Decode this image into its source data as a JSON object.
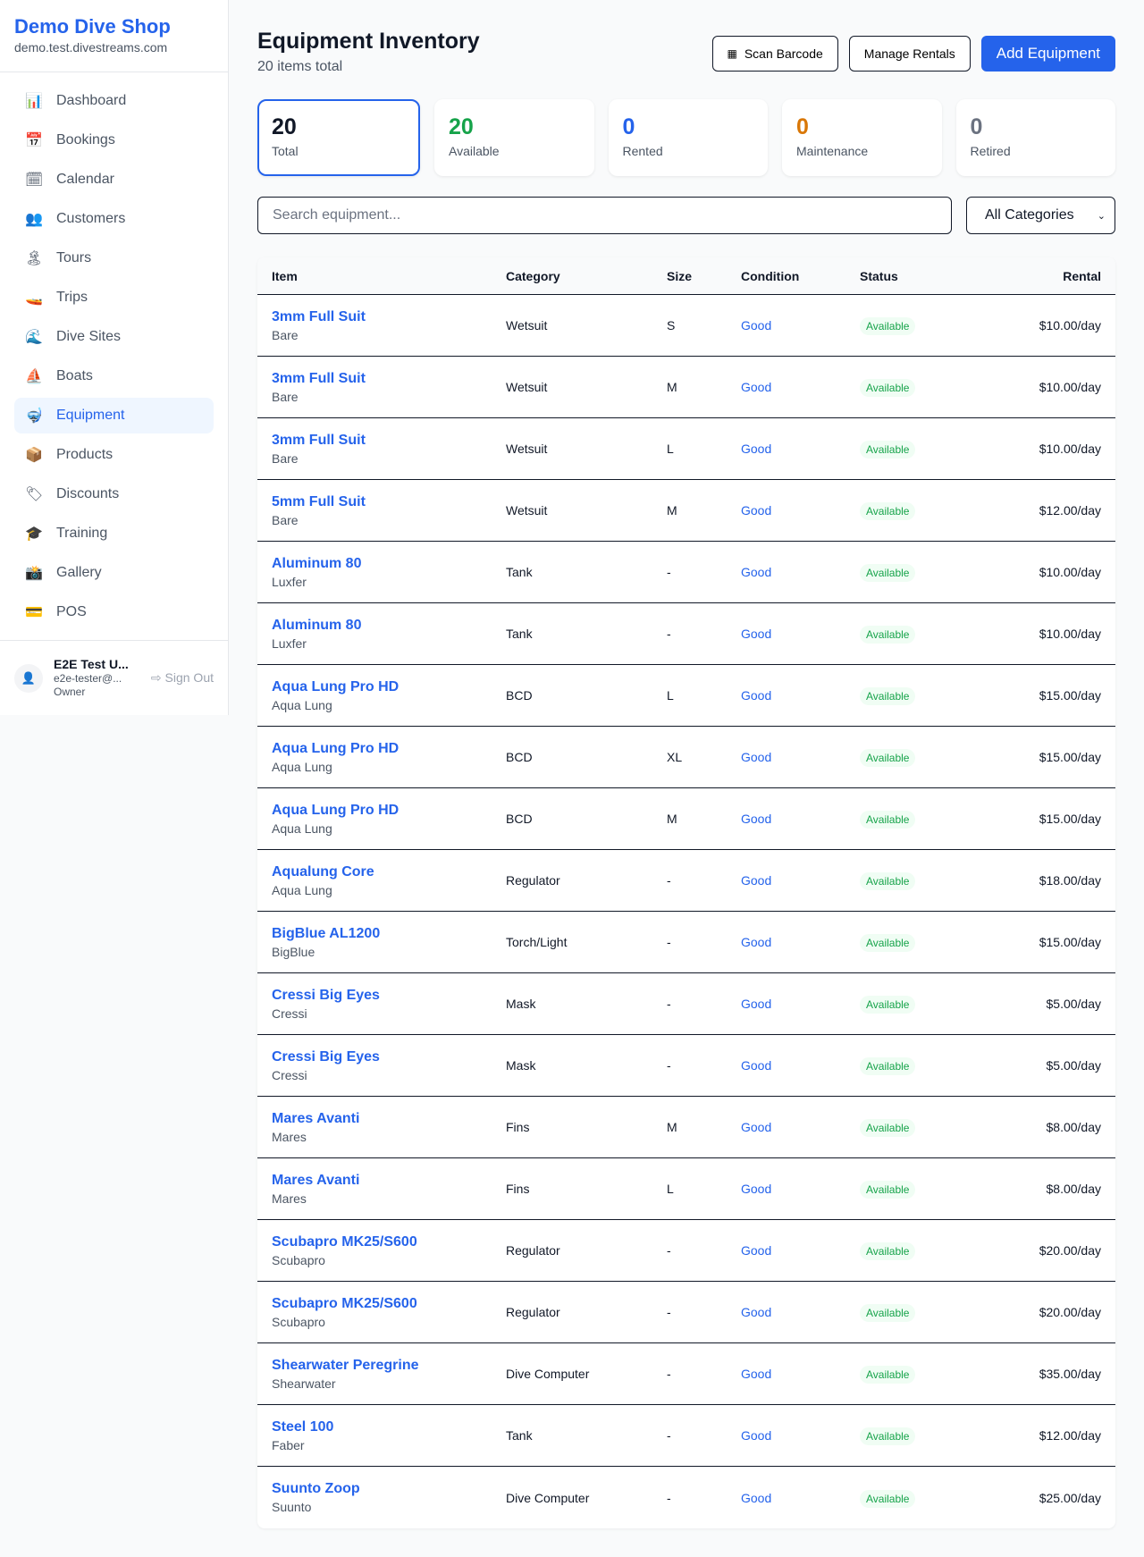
{
  "sidebar": {
    "shop_name": "Demo Dive Shop",
    "domain": "demo.test.divestreams.com",
    "items": [
      {
        "label": "Dashboard",
        "icon": "📊"
      },
      {
        "label": "Bookings",
        "icon": "📅"
      },
      {
        "label": "Calendar",
        "icon": "🗓"
      },
      {
        "label": "Customers",
        "icon": "👥"
      },
      {
        "label": "Tours",
        "icon": "🏝"
      },
      {
        "label": "Trips",
        "icon": "🚤"
      },
      {
        "label": "Dive Sites",
        "icon": "🌊"
      },
      {
        "label": "Boats",
        "icon": "⛵"
      },
      {
        "label": "Equipment",
        "icon": "🤿"
      },
      {
        "label": "Products",
        "icon": "📦"
      },
      {
        "label": "Discounts",
        "icon": "🏷"
      },
      {
        "label": "Training",
        "icon": "🎓"
      },
      {
        "label": "Gallery",
        "icon": "📸"
      },
      {
        "label": "POS",
        "icon": "💳"
      }
    ],
    "active": "Equipment",
    "user": {
      "name": "E2E Test U...",
      "email": "e2e-tester@...",
      "role": "Owner",
      "sign_out": "Sign Out"
    }
  },
  "header": {
    "title": "Equipment Inventory",
    "subtitle": "20 items total",
    "scan": "Scan Barcode",
    "manage": "Manage Rentals",
    "add": "Add Equipment"
  },
  "stats": [
    {
      "value": "20",
      "label": "Total",
      "color": "#111827"
    },
    {
      "value": "20",
      "label": "Available",
      "color": "#16a34a"
    },
    {
      "value": "0",
      "label": "Rented",
      "color": "#2563eb"
    },
    {
      "value": "0",
      "label": "Maintenance",
      "color": "#d97706"
    },
    {
      "value": "0",
      "label": "Retired",
      "color": "#6b7280"
    }
  ],
  "filters": {
    "search_placeholder": "Search equipment...",
    "category": "All Categories"
  },
  "table": {
    "headers": [
      "Item",
      "Category",
      "Size",
      "Condition",
      "Status",
      "Rental"
    ],
    "rows": [
      [
        "3mm Full Suit",
        "Bare",
        "Wetsuit",
        "S",
        "Good",
        "Available",
        "$10.00/day"
      ],
      [
        "3mm Full Suit",
        "Bare",
        "Wetsuit",
        "M",
        "Good",
        "Available",
        "$10.00/day"
      ],
      [
        "3mm Full Suit",
        "Bare",
        "Wetsuit",
        "L",
        "Good",
        "Available",
        "$10.00/day"
      ],
      [
        "5mm Full Suit",
        "Bare",
        "Wetsuit",
        "M",
        "Good",
        "Available",
        "$12.00/day"
      ],
      [
        "Aluminum 80",
        "Luxfer",
        "Tank",
        "-",
        "Good",
        "Available",
        "$10.00/day"
      ],
      [
        "Aluminum 80",
        "Luxfer",
        "Tank",
        "-",
        "Good",
        "Available",
        "$10.00/day"
      ],
      [
        "Aqua Lung Pro HD",
        "Aqua Lung",
        "BCD",
        "L",
        "Good",
        "Available",
        "$15.00/day"
      ],
      [
        "Aqua Lung Pro HD",
        "Aqua Lung",
        "BCD",
        "XL",
        "Good",
        "Available",
        "$15.00/day"
      ],
      [
        "Aqua Lung Pro HD",
        "Aqua Lung",
        "BCD",
        "M",
        "Good",
        "Available",
        "$15.00/day"
      ],
      [
        "Aqualung Core",
        "Aqua Lung",
        "Regulator",
        "-",
        "Good",
        "Available",
        "$18.00/day"
      ],
      [
        "BigBlue AL1200",
        "BigBlue",
        "Torch/Light",
        "-",
        "Good",
        "Available",
        "$15.00/day"
      ],
      [
        "Cressi Big Eyes",
        "Cressi",
        "Mask",
        "-",
        "Good",
        "Available",
        "$5.00/day"
      ],
      [
        "Cressi Big Eyes",
        "Cressi",
        "Mask",
        "-",
        "Good",
        "Available",
        "$5.00/day"
      ],
      [
        "Mares Avanti",
        "Mares",
        "Fins",
        "M",
        "Good",
        "Available",
        "$8.00/day"
      ],
      [
        "Mares Avanti",
        "Mares",
        "Fins",
        "L",
        "Good",
        "Available",
        "$8.00/day"
      ],
      [
        "Scubapro MK25/S600",
        "Scubapro",
        "Regulator",
        "-",
        "Good",
        "Available",
        "$20.00/day"
      ],
      [
        "Scubapro MK25/S600",
        "Scubapro",
        "Regulator",
        "-",
        "Good",
        "Available",
        "$20.00/day"
      ],
      [
        "Shearwater Peregrine",
        "Shearwater",
        "Dive Computer",
        "-",
        "Good",
        "Available",
        "$35.00/day"
      ],
      [
        "Steel 100",
        "Faber",
        "Tank",
        "-",
        "Good",
        "Available",
        "$12.00/day"
      ],
      [
        "Suunto Zoop",
        "Suunto",
        "Dive Computer",
        "-",
        "Good",
        "Available",
        "$25.00/day"
      ]
    ]
  }
}
